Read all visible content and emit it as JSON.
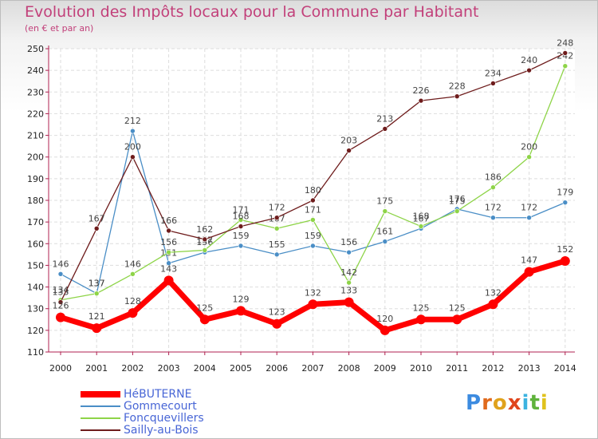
{
  "title": "Evolution des Impôts locaux pour la Commune par Habitant",
  "subtitle": "(en € et par an)",
  "brand": {
    "text": "Proxiti",
    "letters": [
      "P",
      "r",
      "o",
      "x",
      "i",
      "t",
      "i"
    ],
    "colors": [
      "#3c8be0",
      "#e06a1c",
      "#e0a21c",
      "#e0451c",
      "#3cb3e0",
      "#5fb33c",
      "#e0c21c"
    ]
  },
  "chart_data": {
    "type": "line",
    "title": "Evolution des Impôts locaux pour la Commune par Habitant",
    "ylabel": "(en € et par an)",
    "xlabel": "",
    "categories": [
      "2000",
      "2001",
      "2002",
      "2003",
      "2004",
      "2005",
      "2006",
      "2007",
      "2008",
      "2009",
      "2010",
      "2011",
      "2012",
      "2013",
      "2014"
    ],
    "ylim": [
      110,
      250
    ],
    "yticks": [
      110,
      120,
      130,
      140,
      150,
      160,
      170,
      180,
      190,
      200,
      210,
      220,
      230,
      240,
      250
    ],
    "grid": true,
    "legend_position": "bottom-left",
    "series": [
      {
        "name": "HéBUTERNE",
        "color": "#ff0000",
        "values": [
          126,
          121,
          128,
          143,
          125,
          129,
          123,
          132,
          133,
          120,
          125,
          125,
          132,
          147,
          152
        ]
      },
      {
        "name": "Gommecourt",
        "color": "#4a8ec6",
        "values": [
          146,
          137,
          212,
          151,
          156,
          159,
          155,
          159,
          156,
          161,
          167,
          176,
          172,
          172,
          179
        ]
      },
      {
        "name": "Foncquevillers",
        "color": "#8ed448",
        "values": [
          134,
          137,
          146,
          156,
          157,
          171,
          167,
          171,
          142,
          175,
          168,
          175,
          186,
          200,
          242
        ]
      },
      {
        "name": "Sailly-au-Bois",
        "color": "#6e1c1c",
        "values": [
          133,
          167,
          200,
          166,
          162,
          168,
          172,
          180,
          203,
          213,
          226,
          228,
          234,
          240,
          248
        ]
      }
    ]
  }
}
